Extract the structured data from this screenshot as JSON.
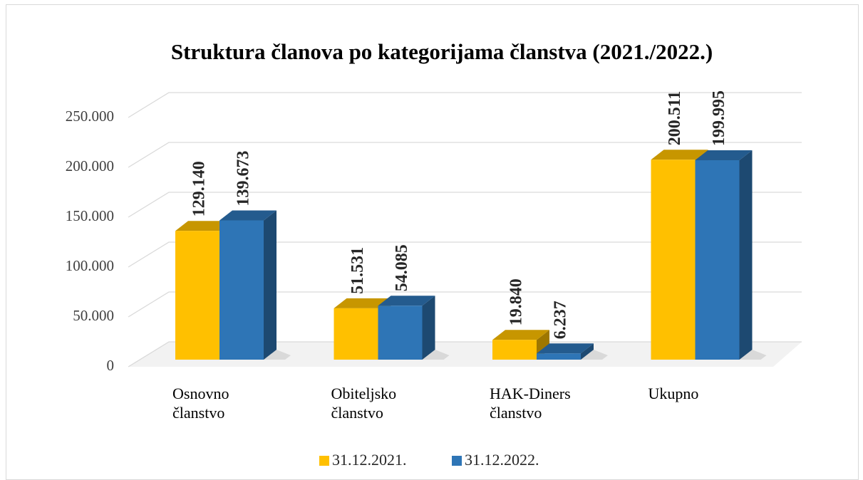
{
  "chart_data": {
    "type": "bar3d",
    "title": "Struktura članova  po kategorijama članstva (2021./2022.)",
    "categories": [
      "Osnovno članstvo",
      "Obiteljsko članstvo",
      "HAK-Diners članstvo",
      "Ukupno"
    ],
    "series": [
      {
        "name": "31.12.2021.",
        "color": "#ffc000",
        "values": [
          129140,
          51531,
          19840,
          200511
        ],
        "value_labels": [
          "129.140",
          "51.531",
          "19.840",
          "200.511"
        ]
      },
      {
        "name": "31.12.2022.",
        "color": "#2e75b6",
        "values": [
          139673,
          54085,
          6237,
          199995
        ],
        "value_labels": [
          "139.673",
          "54.085",
          "6.237",
          "199.995"
        ]
      }
    ],
    "ylim": [
      0,
      250000
    ],
    "yticks": [
      0,
      {
        "value": 50000,
        "label": "50.000"
      },
      {
        "value": 100000,
        "label": "100.000"
      },
      {
        "value": 150000,
        "label": "150.000"
      },
      {
        "value": 200000,
        "label": "200.000"
      },
      {
        "value": 250000,
        "label": "250.000"
      }
    ],
    "grid": true,
    "legend": "bottom"
  }
}
